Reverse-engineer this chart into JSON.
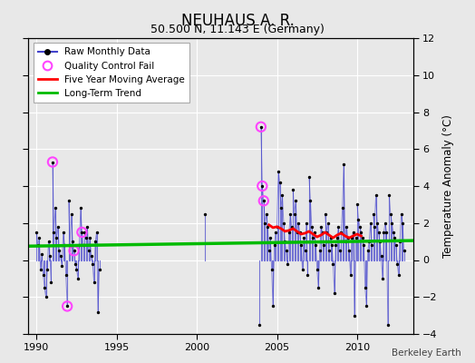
{
  "title": "NEUHAUS A. R.",
  "subtitle": "50.500 N, 11.143 E (Germany)",
  "ylabel": "Temperature Anomaly (°C)",
  "credit": "Berkeley Earth",
  "ylim": [
    -4,
    12
  ],
  "yticks": [
    -4,
    -2,
    0,
    2,
    4,
    6,
    8,
    10,
    12
  ],
  "xlim": [
    1989.5,
    2013.5
  ],
  "xticks": [
    1990,
    1995,
    2000,
    2005,
    2010
  ],
  "bg_color": "#e8e8e8",
  "plot_bg": "#e8e8e8",
  "raw_color": "#4444cc",
  "raw_dot_color": "#000000",
  "qc_color": "#ff44ff",
  "ma_color": "#ff0000",
  "trend_color": "#00bb00",
  "segments_1990": [
    [
      1990.0,
      1.5
    ],
    [
      1990.083,
      0.8
    ],
    [
      1990.167,
      1.2
    ],
    [
      1990.25,
      -0.5
    ],
    [
      1990.333,
      0.3
    ],
    [
      1990.417,
      -0.8
    ],
    [
      1990.5,
      -1.5
    ],
    [
      1990.583,
      -2.0
    ],
    [
      1990.667,
      -0.5
    ],
    [
      1990.75,
      1.0
    ],
    [
      1990.833,
      0.2
    ],
    [
      1990.917,
      -1.2
    ]
  ],
  "segments_1991": [
    [
      1991.0,
      5.3
    ],
    [
      1991.083,
      1.5
    ],
    [
      1991.167,
      2.8
    ],
    [
      1991.25,
      1.2
    ],
    [
      1991.333,
      1.8
    ],
    [
      1991.417,
      0.5
    ],
    [
      1991.5,
      0.2
    ],
    [
      1991.583,
      -0.3
    ],
    [
      1991.667,
      1.5
    ],
    [
      1991.75,
      0.8
    ],
    [
      1991.833,
      -0.8
    ],
    [
      1991.917,
      -2.5
    ]
  ],
  "segments_1992": [
    [
      1992.0,
      3.2
    ],
    [
      1992.083,
      0.8
    ],
    [
      1992.167,
      2.5
    ],
    [
      1992.25,
      1.0
    ],
    [
      1992.333,
      0.5
    ],
    [
      1992.417,
      -0.2
    ],
    [
      1992.5,
      -0.5
    ],
    [
      1992.583,
      -1.0
    ],
    [
      1992.667,
      0.8
    ],
    [
      1992.75,
      2.8
    ],
    [
      1992.833,
      1.5
    ],
    [
      1992.917,
      0.8
    ]
  ],
  "segments_1993": [
    [
      1993.0,
      1.5
    ],
    [
      1993.083,
      1.2
    ],
    [
      1993.167,
      1.8
    ],
    [
      1993.25,
      0.5
    ],
    [
      1993.333,
      1.2
    ],
    [
      1993.417,
      0.2
    ],
    [
      1993.5,
      -0.2
    ],
    [
      1993.583,
      -1.2
    ],
    [
      1993.667,
      1.0
    ],
    [
      1993.75,
      1.5
    ],
    [
      1993.833,
      -2.8
    ],
    [
      1993.917,
      -0.5
    ]
  ],
  "isolated_points": [
    [
      2000.5,
      2.5
    ]
  ],
  "segments_2003": [
    [
      2003.917,
      -3.5
    ]
  ],
  "segments_2004": [
    [
      2004.0,
      7.2
    ],
    [
      2004.083,
      4.0
    ],
    [
      2004.167,
      3.2
    ],
    [
      2004.25,
      2.0
    ],
    [
      2004.333,
      2.5
    ],
    [
      2004.417,
      1.8
    ],
    [
      2004.5,
      0.5
    ],
    [
      2004.583,
      1.2
    ],
    [
      2004.667,
      -0.5
    ],
    [
      2004.75,
      -2.5
    ],
    [
      2004.833,
      0.8
    ],
    [
      2004.917,
      1.5
    ]
  ],
  "segments_2005": [
    [
      2005.0,
      1.8
    ],
    [
      2005.083,
      4.8
    ],
    [
      2005.167,
      4.2
    ],
    [
      2005.25,
      2.8
    ],
    [
      2005.333,
      3.5
    ],
    [
      2005.417,
      2.0
    ],
    [
      2005.5,
      1.0
    ],
    [
      2005.583,
      0.5
    ],
    [
      2005.667,
      -0.2
    ],
    [
      2005.75,
      1.5
    ],
    [
      2005.833,
      2.5
    ],
    [
      2005.917,
      1.8
    ]
  ],
  "segments_2006": [
    [
      2006.0,
      3.8
    ],
    [
      2006.083,
      2.5
    ],
    [
      2006.167,
      3.2
    ],
    [
      2006.25,
      1.5
    ],
    [
      2006.333,
      2.0
    ],
    [
      2006.417,
      1.5
    ],
    [
      2006.5,
      0.8
    ],
    [
      2006.583,
      -0.5
    ],
    [
      2006.667,
      1.2
    ],
    [
      2006.75,
      0.5
    ],
    [
      2006.833,
      2.0
    ],
    [
      2006.917,
      -0.8
    ]
  ],
  "segments_2007": [
    [
      2007.0,
      4.5
    ],
    [
      2007.083,
      3.2
    ],
    [
      2007.167,
      1.8
    ],
    [
      2007.25,
      1.2
    ],
    [
      2007.333,
      1.5
    ],
    [
      2007.417,
      0.8
    ],
    [
      2007.5,
      -0.5
    ],
    [
      2007.583,
      -1.5
    ],
    [
      2007.667,
      0.5
    ],
    [
      2007.75,
      1.8
    ],
    [
      2007.833,
      1.5
    ],
    [
      2007.917,
      0.8
    ]
  ],
  "segments_2008": [
    [
      2008.0,
      2.5
    ],
    [
      2008.083,
      1.5
    ],
    [
      2008.167,
      2.0
    ],
    [
      2008.25,
      0.5
    ],
    [
      2008.333,
      1.2
    ],
    [
      2008.417,
      0.8
    ],
    [
      2008.5,
      -0.2
    ],
    [
      2008.583,
      -1.8
    ],
    [
      2008.667,
      0.8
    ],
    [
      2008.75,
      1.2
    ],
    [
      2008.833,
      1.8
    ],
    [
      2008.917,
      0.5
    ]
  ],
  "segments_2009": [
    [
      2009.0,
      1.5
    ],
    [
      2009.083,
      2.8
    ],
    [
      2009.167,
      5.2
    ],
    [
      2009.25,
      1.0
    ],
    [
      2009.333,
      1.8
    ],
    [
      2009.417,
      1.2
    ],
    [
      2009.5,
      0.5
    ],
    [
      2009.583,
      -0.8
    ],
    [
      2009.667,
      1.2
    ],
    [
      2009.75,
      1.5
    ],
    [
      2009.833,
      -3.0
    ],
    [
      2009.917,
      1.2
    ]
  ],
  "segments_2010": [
    [
      2010.0,
      3.0
    ],
    [
      2010.083,
      2.2
    ],
    [
      2010.167,
      1.8
    ],
    [
      2010.25,
      1.5
    ],
    [
      2010.333,
      1.2
    ],
    [
      2010.417,
      0.8
    ],
    [
      2010.5,
      -1.5
    ],
    [
      2010.583,
      -2.5
    ],
    [
      2010.667,
      0.5
    ],
    [
      2010.75,
      1.0
    ],
    [
      2010.833,
      2.0
    ],
    [
      2010.917,
      0.8
    ]
  ],
  "segments_2011": [
    [
      2011.0,
      2.5
    ],
    [
      2011.083,
      1.8
    ],
    [
      2011.167,
      3.5
    ],
    [
      2011.25,
      2.0
    ],
    [
      2011.333,
      1.5
    ],
    [
      2011.417,
      1.0
    ],
    [
      2011.5,
      0.2
    ],
    [
      2011.583,
      -1.0
    ],
    [
      2011.667,
      1.5
    ],
    [
      2011.75,
      2.0
    ],
    [
      2011.833,
      1.5
    ],
    [
      2011.917,
      -3.5
    ]
  ],
  "segments_2012": [
    [
      2012.0,
      3.5
    ],
    [
      2012.083,
      2.5
    ],
    [
      2012.167,
      2.0
    ],
    [
      2012.25,
      1.5
    ],
    [
      2012.333,
      1.2
    ],
    [
      2012.417,
      0.8
    ],
    [
      2012.5,
      -0.2
    ],
    [
      2012.583,
      -0.8
    ],
    [
      2012.667,
      1.0
    ],
    [
      2012.75,
      2.5
    ],
    [
      2012.833,
      2.0
    ],
    [
      2012.917,
      0.5
    ]
  ],
  "qc_fails": [
    [
      1991.0,
      5.3
    ],
    [
      1991.917,
      -2.5
    ],
    [
      1992.333,
      0.5
    ],
    [
      1992.833,
      1.5
    ],
    [
      2004.0,
      7.2
    ],
    [
      2004.083,
      4.0
    ],
    [
      2004.167,
      3.2
    ]
  ],
  "trend_x": [
    1989.5,
    2013.5
  ],
  "trend_y": [
    0.75,
    1.05
  ],
  "ma_x": [
    2004.5,
    2004.75,
    2005.0,
    2005.25,
    2005.5,
    2005.75,
    2006.0,
    2006.25,
    2006.5,
    2006.75,
    2007.0,
    2007.25,
    2007.5,
    2007.75,
    2008.0,
    2008.25,
    2008.5,
    2008.75,
    2009.0,
    2009.25,
    2009.5,
    2009.75,
    2010.0,
    2010.25
  ],
  "ma_y": [
    1.9,
    1.75,
    1.8,
    1.7,
    1.55,
    1.6,
    1.7,
    1.55,
    1.4,
    1.45,
    1.55,
    1.4,
    1.25,
    1.35,
    1.5,
    1.35,
    1.2,
    1.35,
    1.45,
    1.3,
    1.2,
    1.3,
    1.4,
    1.3
  ]
}
